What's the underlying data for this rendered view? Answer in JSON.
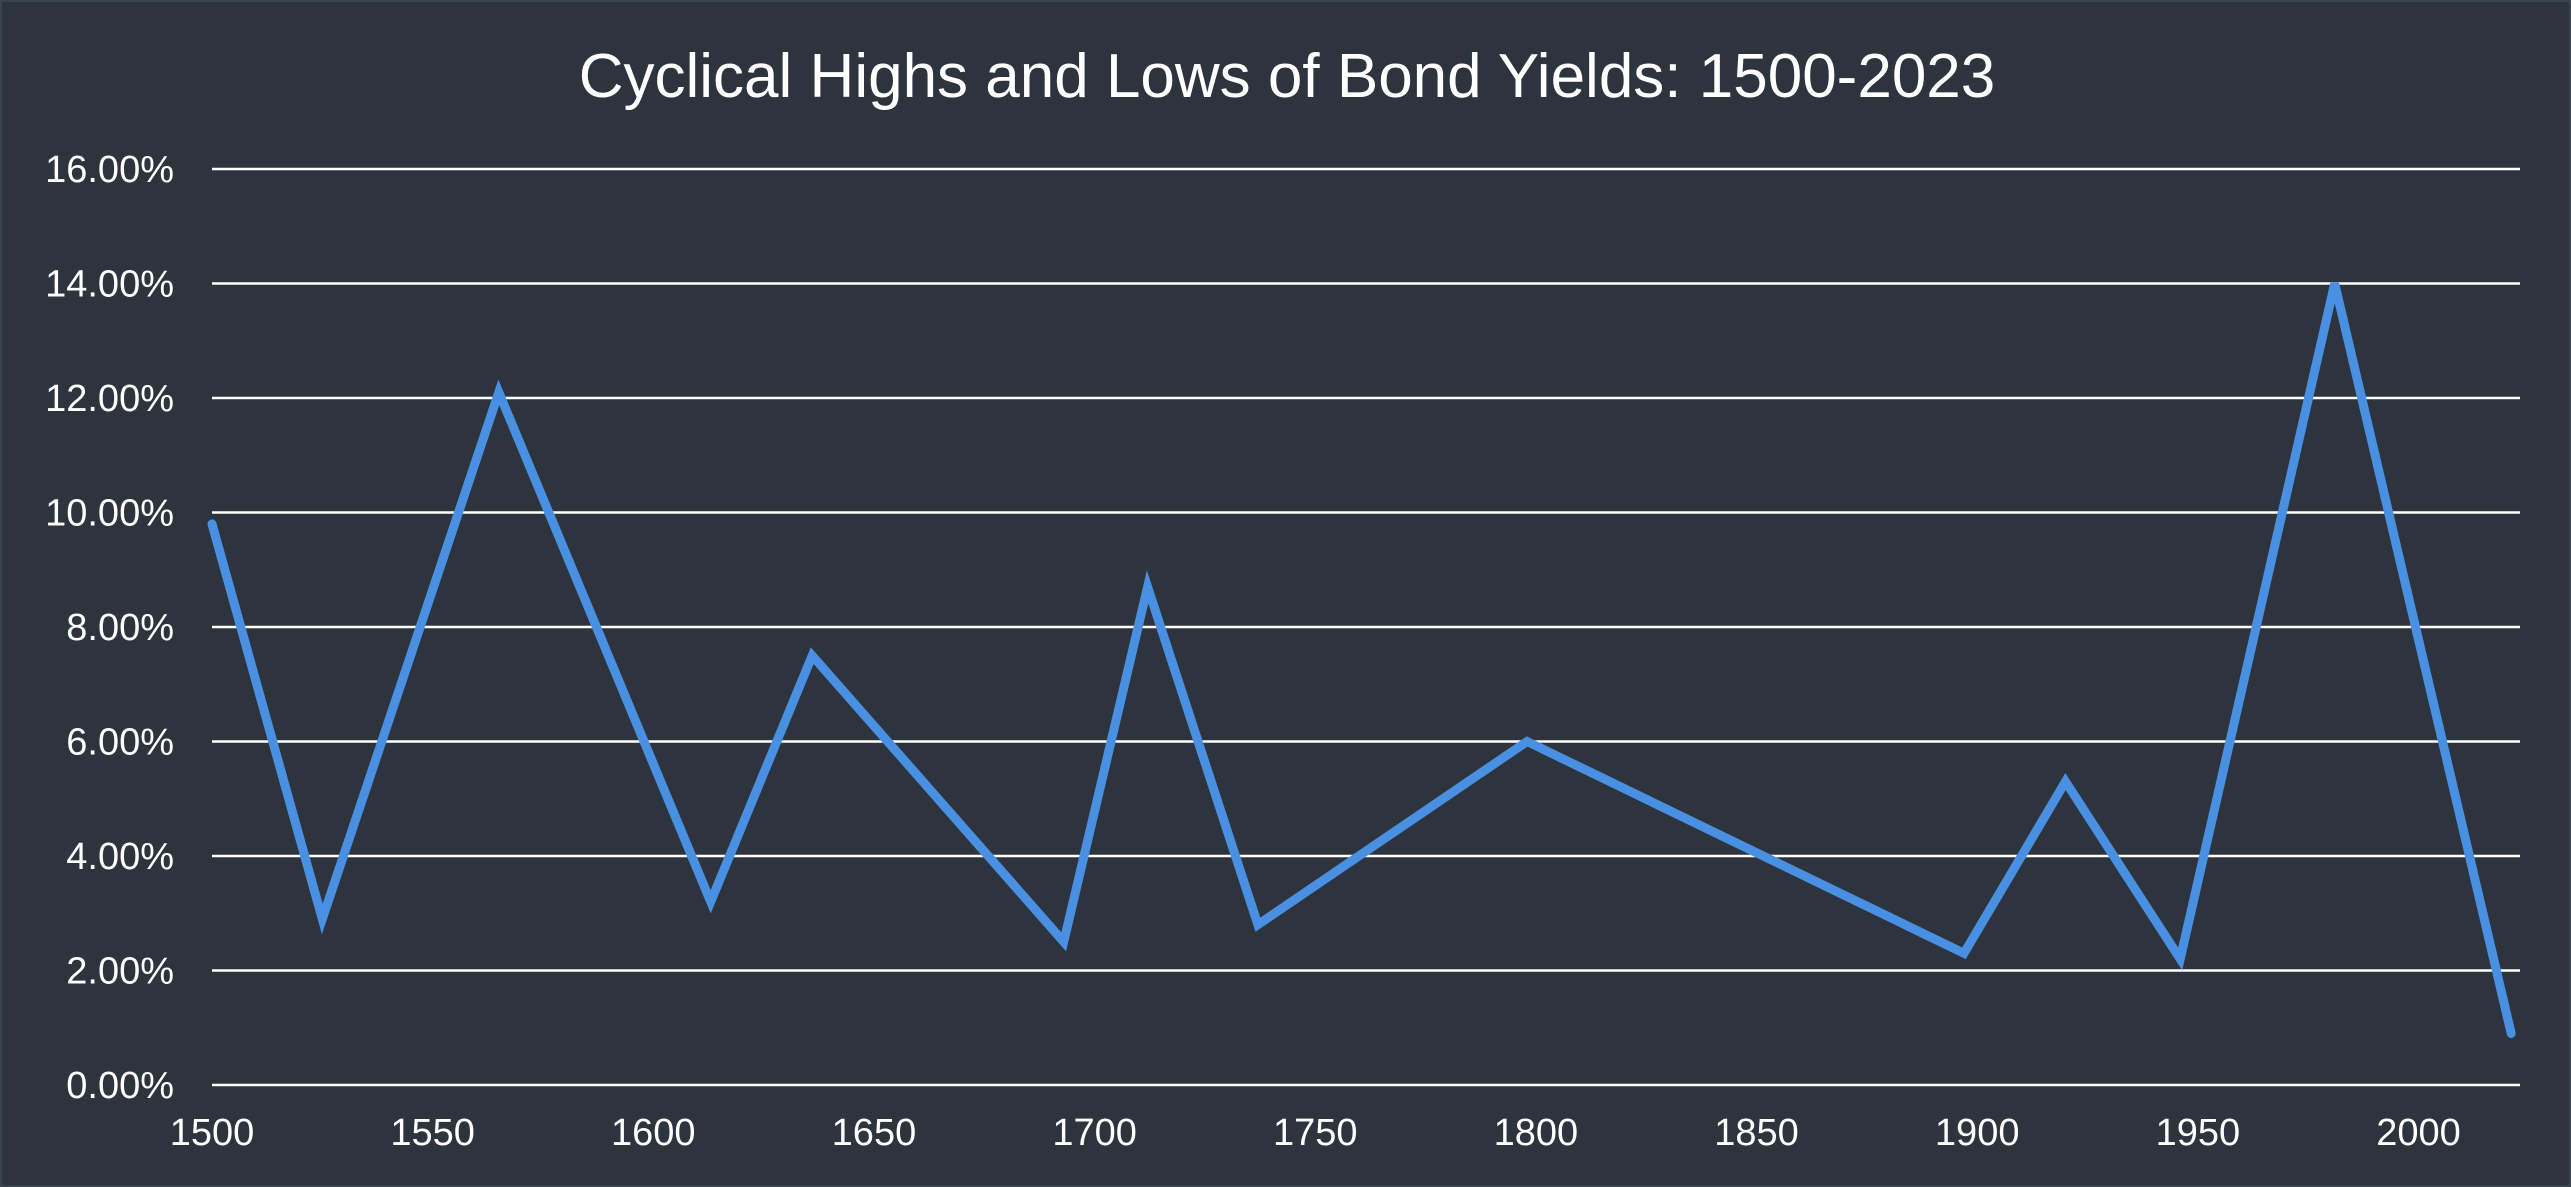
{
  "chart_data": {
    "type": "line",
    "title": "Cyclical Highs and Lows of Bond Yields: 1500-2023",
    "xlabel": "",
    "ylabel": "",
    "xlim": [
      1500,
      2023
    ],
    "ylim": [
      0,
      16
    ],
    "x_ticks": [
      1500,
      1550,
      1600,
      1650,
      1700,
      1750,
      1800,
      1850,
      1900,
      1950,
      2000
    ],
    "x_tick_labels": [
      "1500",
      "1550",
      "1600",
      "1650",
      "1700",
      "1750",
      "1800",
      "1850",
      "1900",
      "1950",
      "2000"
    ],
    "y_ticks": [
      0,
      2,
      4,
      6,
      8,
      10,
      12,
      14,
      16
    ],
    "y_tick_labels": [
      "0.00%",
      "2.00%",
      "4.00%",
      "6.00%",
      "8.00%",
      "10.00%",
      "12.00%",
      "14.00%",
      "16.00%"
    ],
    "grid": true,
    "legend": "none",
    "series": [
      {
        "name": "",
        "color": "#4a90e2",
        "x": [
          1500,
          1525,
          1565,
          1613,
          1636,
          1693,
          1712,
          1737,
          1798,
          1897,
          1920,
          1946,
          1981,
          2021
        ],
        "values": [
          9.8,
          2.9,
          12.1,
          3.2,
          7.5,
          2.5,
          8.7,
          2.8,
          6.0,
          2.3,
          5.3,
          2.2,
          14.0,
          0.9
        ]
      }
    ]
  }
}
